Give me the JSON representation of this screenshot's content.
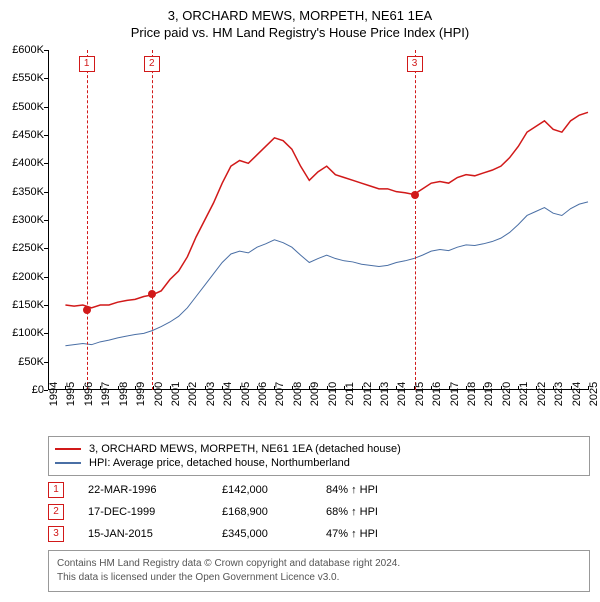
{
  "titles": {
    "line1": "3, ORCHARD MEWS, MORPETH, NE61 1EA",
    "line2": "Price paid vs. HM Land Registry's House Price Index (HPI)"
  },
  "chart": {
    "type": "line",
    "background_color": "#ffffff",
    "x": {
      "min": 1994,
      "max": 2025,
      "tick_step": 1,
      "label_fontsize": 11
    },
    "y": {
      "min": 0,
      "max": 600000,
      "tick_step": 50000,
      "prefix": "£",
      "suffix": "K",
      "divide": 1000,
      "label_fontsize": 11
    },
    "series": [
      {
        "name": "red",
        "color": "#d11919",
        "width": 1.5,
        "legend": "3, ORCHARD MEWS, MORPETH, NE61 1EA (detached house)",
        "points": [
          [
            1995,
            150000
          ],
          [
            1995.5,
            148000
          ],
          [
            1996,
            150000
          ],
          [
            1996.5,
            145000
          ],
          [
            1997,
            150000
          ],
          [
            1997.5,
            150000
          ],
          [
            1998,
            155000
          ],
          [
            1998.5,
            158000
          ],
          [
            1999,
            160000
          ],
          [
            1999.5,
            165000
          ],
          [
            2000,
            168000
          ],
          [
            2000.5,
            175000
          ],
          [
            2001,
            195000
          ],
          [
            2001.5,
            210000
          ],
          [
            2002,
            235000
          ],
          [
            2002.5,
            270000
          ],
          [
            2003,
            300000
          ],
          [
            2003.5,
            330000
          ],
          [
            2004,
            365000
          ],
          [
            2004.5,
            395000
          ],
          [
            2005,
            405000
          ],
          [
            2005.5,
            400000
          ],
          [
            2006,
            415000
          ],
          [
            2006.5,
            430000
          ],
          [
            2007,
            445000
          ],
          [
            2007.5,
            440000
          ],
          [
            2008,
            425000
          ],
          [
            2008.5,
            395000
          ],
          [
            2009,
            370000
          ],
          [
            2009.5,
            385000
          ],
          [
            2010,
            395000
          ],
          [
            2010.5,
            380000
          ],
          [
            2011,
            375000
          ],
          [
            2011.5,
            370000
          ],
          [
            2012,
            365000
          ],
          [
            2012.5,
            360000
          ],
          [
            2013,
            355000
          ],
          [
            2013.5,
            355000
          ],
          [
            2014,
            350000
          ],
          [
            2014.5,
            348000
          ],
          [
            2015,
            345000
          ],
          [
            2015.5,
            355000
          ],
          [
            2016,
            365000
          ],
          [
            2016.5,
            368000
          ],
          [
            2017,
            365000
          ],
          [
            2017.5,
            375000
          ],
          [
            2018,
            380000
          ],
          [
            2018.5,
            378000
          ],
          [
            2019,
            383000
          ],
          [
            2019.5,
            388000
          ],
          [
            2020,
            395000
          ],
          [
            2020.5,
            410000
          ],
          [
            2021,
            430000
          ],
          [
            2021.5,
            455000
          ],
          [
            2022,
            465000
          ],
          [
            2022.5,
            475000
          ],
          [
            2023,
            460000
          ],
          [
            2023.5,
            455000
          ],
          [
            2024,
            475000
          ],
          [
            2024.5,
            485000
          ],
          [
            2025,
            490000
          ]
        ]
      },
      {
        "name": "blue",
        "color": "#4a6fa5",
        "width": 1,
        "legend": "HPI: Average price, detached house, Northumberland",
        "points": [
          [
            1995,
            78000
          ],
          [
            1995.5,
            80000
          ],
          [
            1996,
            82000
          ],
          [
            1996.5,
            80000
          ],
          [
            1997,
            85000
          ],
          [
            1997.5,
            88000
          ],
          [
            1998,
            92000
          ],
          [
            1998.5,
            95000
          ],
          [
            1999,
            98000
          ],
          [
            1999.5,
            100000
          ],
          [
            2000,
            105000
          ],
          [
            2000.5,
            112000
          ],
          [
            2001,
            120000
          ],
          [
            2001.5,
            130000
          ],
          [
            2002,
            145000
          ],
          [
            2002.5,
            165000
          ],
          [
            2003,
            185000
          ],
          [
            2003.5,
            205000
          ],
          [
            2004,
            225000
          ],
          [
            2004.5,
            240000
          ],
          [
            2005,
            245000
          ],
          [
            2005.5,
            242000
          ],
          [
            2006,
            252000
          ],
          [
            2006.5,
            258000
          ],
          [
            2007,
            265000
          ],
          [
            2007.5,
            260000
          ],
          [
            2008,
            252000
          ],
          [
            2008.5,
            238000
          ],
          [
            2009,
            225000
          ],
          [
            2009.5,
            232000
          ],
          [
            2010,
            238000
          ],
          [
            2010.5,
            232000
          ],
          [
            2011,
            228000
          ],
          [
            2011.5,
            226000
          ],
          [
            2012,
            222000
          ],
          [
            2012.5,
            220000
          ],
          [
            2013,
            218000
          ],
          [
            2013.5,
            220000
          ],
          [
            2014,
            225000
          ],
          [
            2014.5,
            228000
          ],
          [
            2015,
            232000
          ],
          [
            2015.5,
            238000
          ],
          [
            2016,
            245000
          ],
          [
            2016.5,
            248000
          ],
          [
            2017,
            246000
          ],
          [
            2017.5,
            252000
          ],
          [
            2018,
            256000
          ],
          [
            2018.5,
            255000
          ],
          [
            2019,
            258000
          ],
          [
            2019.5,
            262000
          ],
          [
            2020,
            268000
          ],
          [
            2020.5,
            278000
          ],
          [
            2021,
            292000
          ],
          [
            2021.5,
            308000
          ],
          [
            2022,
            315000
          ],
          [
            2022.5,
            322000
          ],
          [
            2023,
            312000
          ],
          [
            2023.5,
            308000
          ],
          [
            2024,
            320000
          ],
          [
            2024.5,
            328000
          ],
          [
            2025,
            332000
          ]
        ]
      }
    ],
    "sale_points": {
      "color": "#d11919",
      "radius": 4,
      "items": [
        {
          "x": 1996.22,
          "y": 142000
        },
        {
          "x": 1999.96,
          "y": 168900
        },
        {
          "x": 2015.04,
          "y": 345000
        }
      ]
    },
    "vlines": {
      "color": "#d11919",
      "dash": "3,3",
      "box_border": "#d11919",
      "box_text_color": "#d11919",
      "items": [
        {
          "x": 1996.22,
          "label": "1"
        },
        {
          "x": 1999.96,
          "label": "2"
        },
        {
          "x": 2015.04,
          "label": "3"
        }
      ]
    }
  },
  "legend": {
    "border_color": "#999999",
    "fontsize": 11
  },
  "sales": [
    {
      "n": "1",
      "date": "22-MAR-1996",
      "price": "£142,000",
      "hpi": "84% ↑ HPI"
    },
    {
      "n": "2",
      "date": "17-DEC-1999",
      "price": "£168,900",
      "hpi": "68% ↑ HPI"
    },
    {
      "n": "3",
      "date": "15-JAN-2015",
      "price": "£345,000",
      "hpi": "47% ↑ HPI"
    }
  ],
  "sales_style": {
    "box_border": "#d11919",
    "box_text_color": "#d11919",
    "fontsize": 11
  },
  "footer": {
    "line1": "Contains HM Land Registry data © Crown copyright and database right 2024.",
    "line2": "This data is licensed under the Open Government Licence v3.0.",
    "border_color": "#999999",
    "text_color": "#555555"
  }
}
